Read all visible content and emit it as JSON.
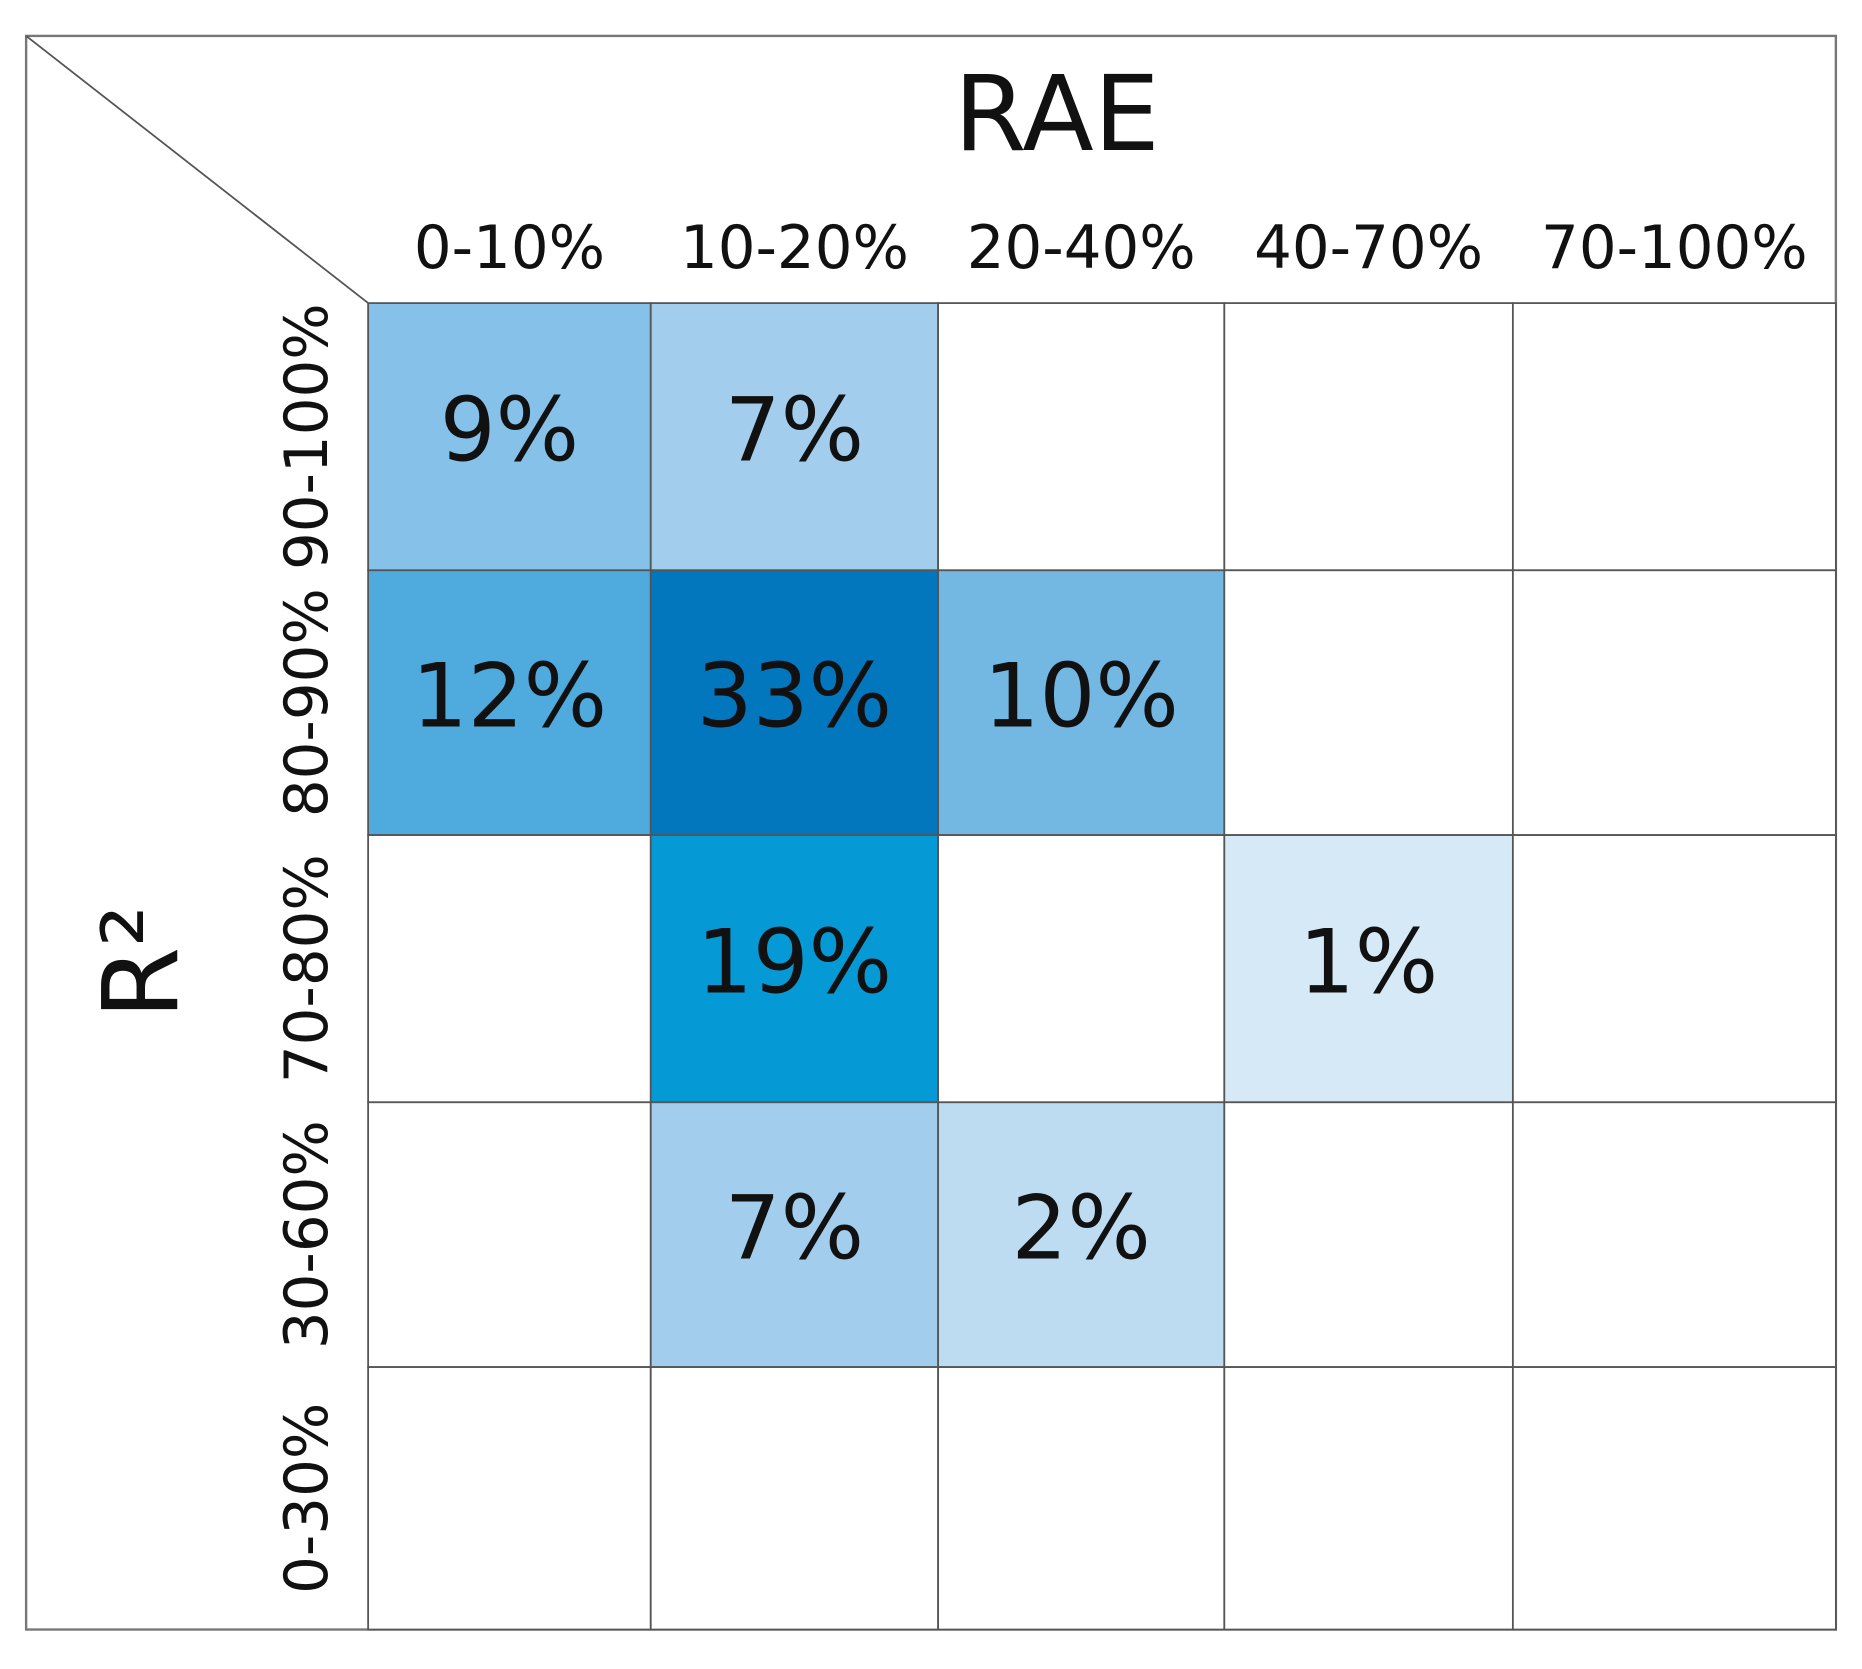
{
  "chart_data": {
    "type": "heatmap",
    "x_label": "RAE",
    "y_label": "R²",
    "x_categories": [
      "0-10%",
      "10-20%",
      "20-40%",
      "40-70%",
      "70-100%"
    ],
    "y_categories": [
      "90-100%",
      "80-90%",
      "70-80%",
      "30-60%",
      "0-30%"
    ],
    "values": [
      [
        9,
        7,
        null,
        null,
        null
      ],
      [
        12,
        33,
        10,
        null,
        null
      ],
      [
        null,
        19,
        null,
        1,
        null
      ],
      [
        null,
        7,
        2,
        null,
        null
      ],
      [
        null,
        null,
        null,
        null,
        null
      ]
    ],
    "value_labels": [
      [
        "9%",
        "7%",
        null,
        null,
        null
      ],
      [
        "12%",
        "33%",
        "10%",
        null,
        null
      ],
      [
        null,
        "19%",
        null,
        "1%",
        null
      ],
      [
        null,
        "7%",
        "2%",
        null,
        null
      ],
      [
        null,
        null,
        null,
        null,
        null
      ]
    ],
    "colors": [
      [
        "#85c1e9",
        "#a3cdec",
        null,
        null,
        null
      ],
      [
        "#4faade",
        "#0277be",
        "#73b7e3",
        null,
        null
      ],
      [
        null,
        "#0599d6",
        null,
        "#d6e9f7",
        null
      ],
      [
        null,
        "#a3cdec",
        "#bddcf2",
        null,
        null
      ],
      [
        null,
        null,
        null,
        null,
        null
      ]
    ]
  }
}
